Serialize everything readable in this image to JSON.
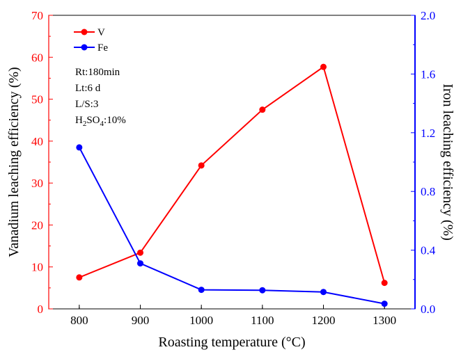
{
  "chart_data": {
    "type": "line",
    "x": [
      800,
      900,
      1000,
      1100,
      1200,
      1300
    ],
    "xlabel": "Roasting temperature (°C)",
    "xticks": [
      "800",
      "900",
      "1000",
      "1100",
      "1200",
      "1300"
    ],
    "xlim": [
      750,
      1350
    ],
    "y_left": {
      "label": "Vanadium leaching efficiency (%)",
      "lim": [
        0,
        70
      ],
      "ticks": [
        "0",
        "10",
        "20",
        "30",
        "40",
        "50",
        "60",
        "70"
      ],
      "color": "#ff0000"
    },
    "y_right": {
      "label": "Iron leaching efficiency (%)",
      "lim": [
        0,
        2.0
      ],
      "ticks": [
        "0.0",
        "0.4",
        "0.8",
        "1.2",
        "1.6",
        "2.0"
      ],
      "color": "#0000ff"
    },
    "series": [
      {
        "name": "V",
        "axis": "left",
        "color": "#ff0000",
        "values": [
          7.5,
          13.4,
          34.2,
          47.5,
          57.7,
          6.2
        ]
      },
      {
        "name": "Fe",
        "axis": "right",
        "color": "#0000ff",
        "values": [
          1.1,
          0.31,
          0.13,
          0.127,
          0.115,
          0.035
        ]
      }
    ],
    "legend_position": "top-left",
    "grid": false,
    "annotations": [
      "Rt:180min",
      "Lt:6 d",
      "L/S:3",
      "SO"
    ],
    "annotation_h2so4": {
      "prefix": "H",
      "sub1": "2",
      "mid": "SO",
      "sub2": "4",
      "suffix": ":10%"
    }
  }
}
